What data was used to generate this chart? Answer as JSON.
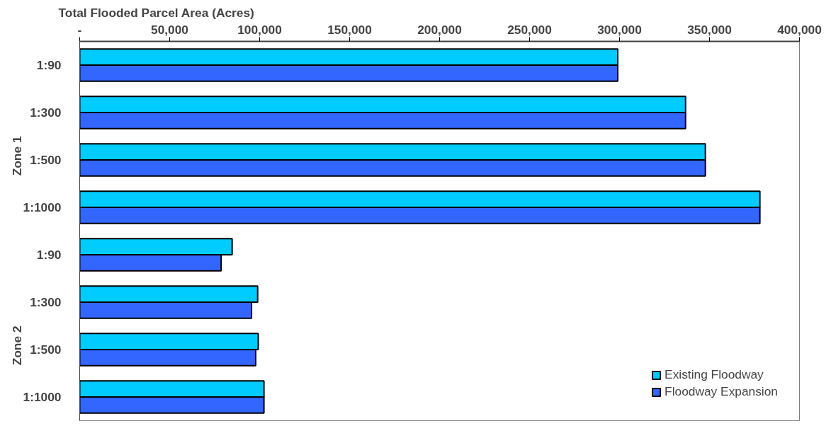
{
  "chart_data": {
    "type": "bar",
    "orientation": "horizontal",
    "xlabel": "Total Flooded Parcel Area (Acres)",
    "categories": [
      "1:90",
      "1:300",
      "1:500",
      "1:1000",
      "1:90",
      "1:300",
      "1:500",
      "1:1000"
    ],
    "annotations": [
      "Zone 1",
      "Zone 2"
    ],
    "series": [
      {
        "name": "Existing Floodway",
        "color": "#00ccff",
        "values": [
          299000,
          336700,
          347700,
          378000,
          84700,
          98900,
          99200,
          102400
        ]
      },
      {
        "name": "Floodway Expansion",
        "color": "#3366ff",
        "values": [
          299000,
          336700,
          347700,
          378000,
          78600,
          95500,
          97800,
          102400
        ]
      }
    ],
    "xlim": [
      0,
      400000
    ],
    "xticks": [
      {
        "value": 0,
        "label": "-"
      },
      {
        "value": 50000,
        "label": "50,000"
      },
      {
        "value": 100000,
        "label": "100,000"
      },
      {
        "value": 150000,
        "label": "150,000"
      },
      {
        "value": 200000,
        "label": "200,000"
      },
      {
        "value": 250000,
        "label": "250,000"
      },
      {
        "value": 300000,
        "label": "300,000"
      },
      {
        "value": 350000,
        "label": "350,000"
      },
      {
        "value": 400000,
        "label": "400,000"
      }
    ],
    "grid": false,
    "legend": "bottom right"
  }
}
